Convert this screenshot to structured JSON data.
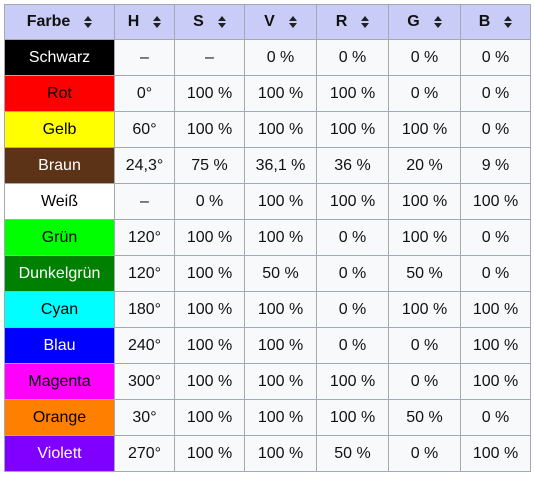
{
  "table": {
    "columns": [
      {
        "key": "farbe",
        "label": "Farbe"
      },
      {
        "key": "h",
        "label": "H"
      },
      {
        "key": "s",
        "label": "S"
      },
      {
        "key": "v",
        "label": "V"
      },
      {
        "key": "r",
        "label": "R"
      },
      {
        "key": "g",
        "label": "G"
      },
      {
        "key": "b",
        "label": "B"
      }
    ],
    "rows": [
      {
        "name": "Schwarz",
        "bg": "#000000",
        "fg": "#ffffff",
        "cells": [
          "–",
          "–",
          "0 %",
          "0 %",
          "0 %",
          "0 %"
        ]
      },
      {
        "name": "Rot",
        "bg": "#ff0000",
        "fg": "#000000",
        "cells": [
          "0°",
          "100 %",
          "100 %",
          "100 %",
          "0 %",
          "0 %"
        ]
      },
      {
        "name": "Gelb",
        "bg": "#ffff00",
        "fg": "#000000",
        "cells": [
          "60°",
          "100 %",
          "100 %",
          "100 %",
          "100 %",
          "0 %"
        ]
      },
      {
        "name": "Braun",
        "bg": "#5c3317",
        "fg": "#ffffff",
        "cells": [
          "24,3°",
          "75 %",
          "36,1 %",
          "36 %",
          "20 %",
          "9 %"
        ]
      },
      {
        "name": "Weiß",
        "bg": "#ffffff",
        "fg": "#000000",
        "cells": [
          "–",
          "0 %",
          "100 %",
          "100 %",
          "100 %",
          "100 %"
        ]
      },
      {
        "name": "Grün",
        "bg": "#00ff00",
        "fg": "#000000",
        "cells": [
          "120°",
          "100 %",
          "100 %",
          "0 %",
          "100 %",
          "0 %"
        ]
      },
      {
        "name": "Dunkelgrün",
        "bg": "#008000",
        "fg": "#ffffff",
        "cells": [
          "120°",
          "100 %",
          "50 %",
          "0 %",
          "50 %",
          "0 %"
        ]
      },
      {
        "name": "Cyan",
        "bg": "#00ffff",
        "fg": "#000000",
        "cells": [
          "180°",
          "100 %",
          "100 %",
          "0 %",
          "100 %",
          "100 %"
        ]
      },
      {
        "name": "Blau",
        "bg": "#0000ff",
        "fg": "#ffffff",
        "cells": [
          "240°",
          "100 %",
          "100 %",
          "0 %",
          "0 %",
          "100 %"
        ]
      },
      {
        "name": "Magenta",
        "bg": "#ff00ff",
        "fg": "#000000",
        "cells": [
          "300°",
          "100 %",
          "100 %",
          "100 %",
          "0 %",
          "100 %"
        ]
      },
      {
        "name": "Orange",
        "bg": "#ff8000",
        "fg": "#000000",
        "cells": [
          "30°",
          "100 %",
          "100 %",
          "100 %",
          "50 %",
          "0 %"
        ]
      },
      {
        "name": "Violett",
        "bg": "#8000ff",
        "fg": "#ffffff",
        "cells": [
          "270°",
          "100 %",
          "100 %",
          "50 %",
          "0 %",
          "100 %"
        ]
      }
    ]
  },
  "icons": {
    "sort": "sort-icon"
  },
  "colors": {
    "header_bg": "#c9ccf7",
    "cell_bg": "#f8f9fa",
    "border": "#a2a9b1"
  }
}
